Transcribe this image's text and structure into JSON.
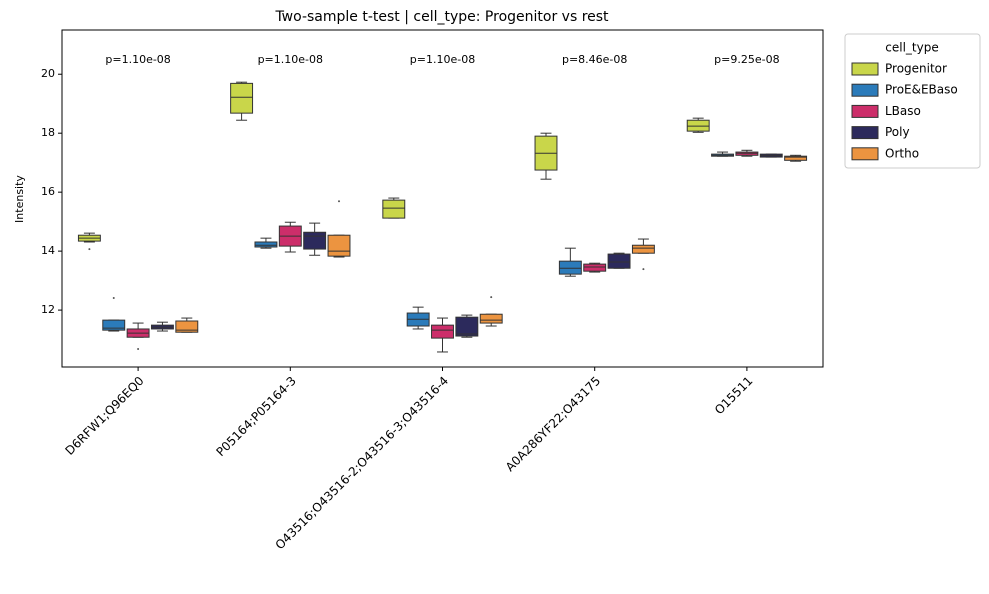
{
  "chart_data": {
    "type": "box",
    "title": "Two-sample t-test | cell_type: Progenitor vs rest",
    "y_label": "Intensity",
    "categories": [
      "D6RFW1;Q96EQ0",
      "P05164;P05164-3",
      "O43516;O43516-2;O43516-3;O43516-4",
      "A0A286YF22;O43175",
      "O15511"
    ],
    "annotations": [
      "p=1.10e-08",
      "p=1.10e-08",
      "p=1.10e-08",
      "p=8.46e-08",
      "p=9.25e-08"
    ],
    "ylim": [
      10.07,
      21.5
    ],
    "yticks": [
      12,
      14,
      16,
      18,
      20
    ],
    "legend_title": "cell_type",
    "legend": "outside upper right",
    "series": [
      {
        "name": "Progenitor",
        "color": "#c9d64a",
        "values": [
          {
            "whislo": 14.31,
            "q1": 14.34,
            "med": 14.44,
            "q3": 14.54,
            "whishi": 14.61,
            "fliers": [
              14.07
            ]
          },
          {
            "whislo": 18.44,
            "q1": 18.68,
            "med": 19.22,
            "q3": 19.69,
            "whishi": 19.73,
            "fliers": []
          },
          {
            "whislo": 15.12,
            "q1": 15.12,
            "med": 15.46,
            "q3": 15.73,
            "whishi": 15.8,
            "fliers": []
          },
          {
            "whislo": 16.44,
            "q1": 16.75,
            "med": 17.32,
            "q3": 17.9,
            "whishi": 18.0,
            "fliers": []
          },
          {
            "whislo": 18.03,
            "q1": 18.07,
            "med": 18.24,
            "q3": 18.44,
            "whishi": 18.51,
            "fliers": []
          }
        ]
      },
      {
        "name": "ProE&EBaso",
        "color": "#2b7bba",
        "values": [
          {
            "whislo": 11.29,
            "q1": 11.32,
            "med": 11.39,
            "q3": 11.66,
            "whishi": 11.66,
            "fliers": [
              12.41
            ]
          },
          {
            "whislo": 14.1,
            "q1": 14.14,
            "med": 14.2,
            "q3": 14.31,
            "whishi": 14.44,
            "fliers": []
          },
          {
            "whislo": 11.36,
            "q1": 11.46,
            "med": 11.69,
            "q3": 11.9,
            "whishi": 12.1,
            "fliers": []
          },
          {
            "whislo": 13.15,
            "q1": 13.22,
            "med": 13.42,
            "q3": 13.66,
            "whishi": 14.1,
            "fliers": []
          },
          {
            "whislo": 17.22,
            "q1": 17.22,
            "med": 17.25,
            "q3": 17.29,
            "whishi": 17.36,
            "fliers": []
          }
        ]
      },
      {
        "name": "LBaso",
        "color": "#cc2e6a",
        "values": [
          {
            "whislo": 11.08,
            "q1": 11.08,
            "med": 11.22,
            "q3": 11.36,
            "whishi": 11.56,
            "fliers": [
              10.68
            ]
          },
          {
            "whislo": 13.97,
            "q1": 14.17,
            "med": 14.51,
            "q3": 14.85,
            "whishi": 14.98,
            "fliers": []
          },
          {
            "whislo": 10.58,
            "q1": 11.05,
            "med": 11.32,
            "q3": 11.49,
            "whishi": 11.73,
            "fliers": []
          },
          {
            "whislo": 13.29,
            "q1": 13.32,
            "med": 13.46,
            "q3": 13.56,
            "whishi": 13.59,
            "fliers": []
          },
          {
            "whislo": 17.22,
            "q1": 17.25,
            "med": 17.32,
            "q3": 17.36,
            "whishi": 17.42,
            "fliers": []
          }
        ]
      },
      {
        "name": "Poly",
        "color": "#2c2a5c",
        "values": [
          {
            "whislo": 11.29,
            "q1": 11.36,
            "med": 11.42,
            "q3": 11.49,
            "whishi": 11.59,
            "fliers": []
          },
          {
            "whislo": 13.86,
            "q1": 14.07,
            "med": 14.51,
            "q3": 14.64,
            "whishi": 14.95,
            "fliers": []
          },
          {
            "whislo": 11.08,
            "q1": 11.12,
            "med": 11.19,
            "q3": 11.76,
            "whishi": 11.83,
            "fliers": []
          },
          {
            "whislo": 13.42,
            "q1": 13.42,
            "med": 13.63,
            "q3": 13.9,
            "whishi": 13.93,
            "fliers": []
          },
          {
            "whislo": 17.19,
            "q1": 17.19,
            "med": 17.24,
            "q3": 17.29,
            "whishi": 17.29,
            "fliers": []
          }
        ]
      },
      {
        "name": "Ortho",
        "color": "#ec9440",
        "values": [
          {
            "whislo": 11.25,
            "q1": 11.25,
            "med": 11.32,
            "q3": 11.63,
            "whishi": 11.73,
            "fliers": []
          },
          {
            "whislo": 13.8,
            "q1": 13.83,
            "med": 14.0,
            "q3": 14.54,
            "whishi": 14.54,
            "fliers": [
              15.69
            ]
          },
          {
            "whislo": 11.46,
            "q1": 11.56,
            "med": 11.66,
            "q3": 11.86,
            "whishi": 11.86,
            "fliers": [
              12.44
            ]
          },
          {
            "whislo": 13.93,
            "q1": 13.93,
            "med": 14.1,
            "q3": 14.2,
            "whishi": 14.41,
            "fliers": [
              13.39
            ]
          },
          {
            "whislo": 17.05,
            "q1": 17.08,
            "med": 17.19,
            "q3": 17.22,
            "whishi": 17.25,
            "fliers": []
          }
        ]
      }
    ]
  }
}
